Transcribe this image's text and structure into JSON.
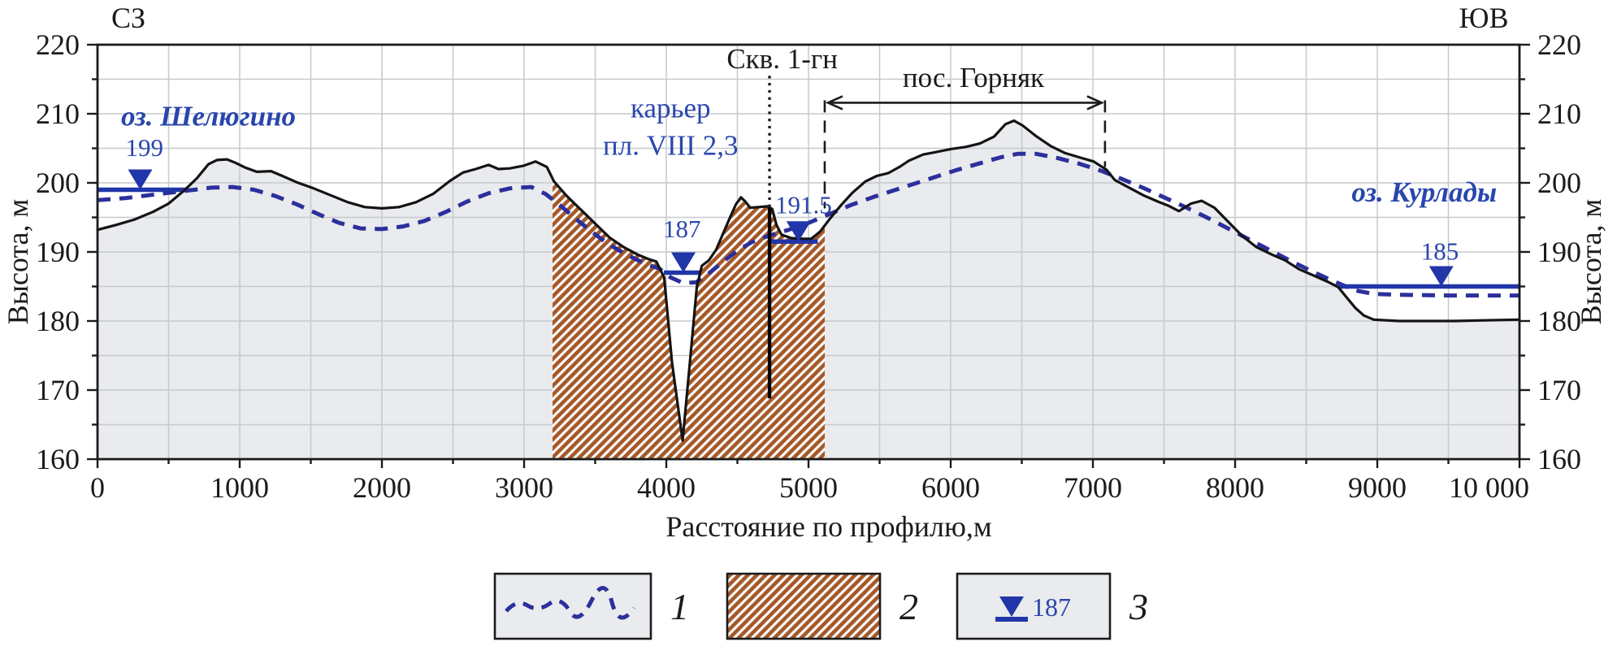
{
  "chart_data": {
    "type": "line",
    "subtype": "geological-elevation-profile",
    "xlabel": "Расстояние по профилю,м",
    "ylabel": "Высота, м",
    "xlim": [
      0,
      10000
    ],
    "ylim": [
      160,
      220
    ],
    "grid": {
      "on": true,
      "x_minor_step": 500,
      "y_minor_step": 5
    },
    "legend_position": "bottom",
    "corner_labels": {
      "left": "СЗ",
      "right": "ЮВ"
    },
    "x_ticks": [
      0,
      1000,
      2000,
      3000,
      4000,
      5000,
      6000,
      7000,
      8000,
      9000,
      10000
    ],
    "x_tick_labels": [
      "0",
      "1000",
      "2000",
      "3000",
      "4000",
      "5000",
      "6000",
      "7000",
      "8000",
      "9000",
      "10 000"
    ],
    "y_ticks": [
      160,
      170,
      180,
      190,
      200,
      210,
      220
    ],
    "y_tick_labels": [
      "160",
      "170",
      "180",
      "190",
      "200",
      "210",
      "220"
    ],
    "series": [
      {
        "name": "terrain-surface",
        "style": "solid",
        "color": "#141414",
        "fill_below": "#e9ebee",
        "points": [
          [
            0,
            193.2
          ],
          [
            130,
            193.9
          ],
          [
            260,
            194.7
          ],
          [
            390,
            195.8
          ],
          [
            500,
            197.0
          ],
          [
            610,
            198.9
          ],
          [
            700,
            200.7
          ],
          [
            780,
            202.7
          ],
          [
            840,
            203.3
          ],
          [
            910,
            203.4
          ],
          [
            970,
            202.9
          ],
          [
            1040,
            202.2
          ],
          [
            1120,
            201.6
          ],
          [
            1220,
            201.7
          ],
          [
            1300,
            201.0
          ],
          [
            1400,
            200.1
          ],
          [
            1520,
            199.2
          ],
          [
            1640,
            198.2
          ],
          [
            1760,
            197.2
          ],
          [
            1880,
            196.5
          ],
          [
            2000,
            196.3
          ],
          [
            2120,
            196.5
          ],
          [
            2240,
            197.2
          ],
          [
            2360,
            198.4
          ],
          [
            2480,
            200.3
          ],
          [
            2570,
            201.5
          ],
          [
            2660,
            202.0
          ],
          [
            2750,
            202.6
          ],
          [
            2820,
            202.0
          ],
          [
            2900,
            202.1
          ],
          [
            3000,
            202.5
          ],
          [
            3080,
            203.1
          ],
          [
            3160,
            202.3
          ],
          [
            3210,
            200.2
          ],
          [
            3300,
            198.1
          ],
          [
            3400,
            196.1
          ],
          [
            3500,
            194.1
          ],
          [
            3600,
            192.1
          ],
          [
            3700,
            190.7
          ],
          [
            3800,
            189.6
          ],
          [
            3870,
            189.0
          ],
          [
            3930,
            188.6
          ],
          [
            3985,
            186.3
          ],
          [
            4040,
            174.0
          ],
          [
            4115,
            162.7
          ],
          [
            4175,
            176.0
          ],
          [
            4215,
            185.0
          ],
          [
            4250,
            188.0
          ],
          [
            4300,
            188.8
          ],
          [
            4350,
            190.3
          ],
          [
            4400,
            192.7
          ],
          [
            4450,
            195.1
          ],
          [
            4490,
            196.9
          ],
          [
            4525,
            197.9
          ],
          [
            4555,
            197.3
          ],
          [
            4590,
            196.4
          ],
          [
            4650,
            196.5
          ],
          [
            4710,
            196.6
          ],
          [
            4745,
            196.2
          ],
          [
            4775,
            193.9
          ],
          [
            4810,
            192.5
          ],
          [
            4880,
            192.0
          ],
          [
            4960,
            191.9
          ],
          [
            5020,
            191.9
          ],
          [
            5080,
            192.9
          ],
          [
            5150,
            194.8
          ],
          [
            5230,
            196.8
          ],
          [
            5310,
            198.6
          ],
          [
            5400,
            200.2
          ],
          [
            5480,
            201.0
          ],
          [
            5560,
            201.4
          ],
          [
            5640,
            202.3
          ],
          [
            5705,
            203.2
          ],
          [
            5805,
            204.1
          ],
          [
            5905,
            204.5
          ],
          [
            6005,
            204.9
          ],
          [
            6105,
            205.2
          ],
          [
            6205,
            205.7
          ],
          [
            6305,
            206.7
          ],
          [
            6385,
            208.5
          ],
          [
            6445,
            209.0
          ],
          [
            6505,
            208.3
          ],
          [
            6605,
            206.7
          ],
          [
            6705,
            205.3
          ],
          [
            6805,
            204.3
          ],
          [
            6905,
            203.7
          ],
          [
            7005,
            203.1
          ],
          [
            7095,
            201.9
          ],
          [
            7155,
            200.4
          ],
          [
            7255,
            199.3
          ],
          [
            7355,
            198.2
          ],
          [
            7455,
            197.3
          ],
          [
            7530,
            196.7
          ],
          [
            7605,
            195.9
          ],
          [
            7690,
            197.0
          ],
          [
            7765,
            197.4
          ],
          [
            7855,
            196.4
          ],
          [
            7950,
            194.4
          ],
          [
            8050,
            192.3
          ],
          [
            8150,
            190.7
          ],
          [
            8250,
            189.7
          ],
          [
            8350,
            188.8
          ],
          [
            8450,
            187.5
          ],
          [
            8550,
            186.6
          ],
          [
            8650,
            185.7
          ],
          [
            8725,
            184.9
          ],
          [
            8785,
            183.4
          ],
          [
            8845,
            181.9
          ],
          [
            8905,
            180.8
          ],
          [
            8975,
            180.2
          ],
          [
            9150,
            180.0
          ],
          [
            9350,
            180.0
          ],
          [
            9550,
            180.0
          ],
          [
            9750,
            180.1
          ],
          [
            10000,
            180.2
          ]
        ]
      },
      {
        "name": "water-table",
        "style": "dashed",
        "color": "#2c2f9c",
        "legend_number": "1",
        "points": [
          [
            0,
            197.5
          ],
          [
            200,
            197.8
          ],
          [
            400,
            198.3
          ],
          [
            600,
            198.8
          ],
          [
            800,
            199.3
          ],
          [
            950,
            199.4
          ],
          [
            1100,
            199.0
          ],
          [
            1250,
            198.1
          ],
          [
            1400,
            196.9
          ],
          [
            1550,
            195.5
          ],
          [
            1700,
            194.2
          ],
          [
            1850,
            193.4
          ],
          [
            2000,
            193.3
          ],
          [
            2150,
            193.7
          ],
          [
            2300,
            194.5
          ],
          [
            2450,
            195.8
          ],
          [
            2600,
            197.3
          ],
          [
            2750,
            198.5
          ],
          [
            2900,
            199.2
          ],
          [
            3050,
            199.4
          ],
          [
            3150,
            198.4
          ],
          [
            3250,
            196.8
          ],
          [
            3350,
            195.0
          ],
          [
            3460,
            193.2
          ],
          [
            3560,
            191.6
          ],
          [
            3660,
            190.3
          ],
          [
            3760,
            189.2
          ],
          [
            3860,
            188.2
          ],
          [
            3950,
            187.6
          ],
          [
            4030,
            186.3
          ],
          [
            4120,
            185.5
          ],
          [
            4210,
            185.6
          ],
          [
            4300,
            186.9
          ],
          [
            4400,
            188.6
          ],
          [
            4500,
            190.2
          ],
          [
            4600,
            191.4
          ],
          [
            4715,
            192.3
          ],
          [
            4860,
            193.2
          ],
          [
            5000,
            194.2
          ],
          [
            5150,
            195.5
          ],
          [
            5300,
            196.8
          ],
          [
            5450,
            197.9
          ],
          [
            5600,
            198.9
          ],
          [
            5750,
            199.9
          ],
          [
            5900,
            200.9
          ],
          [
            6050,
            201.9
          ],
          [
            6200,
            202.8
          ],
          [
            6350,
            203.7
          ],
          [
            6470,
            204.2
          ],
          [
            6600,
            204.2
          ],
          [
            6750,
            203.6
          ],
          [
            6900,
            202.8
          ],
          [
            7050,
            201.8
          ],
          [
            7200,
            200.6
          ],
          [
            7350,
            199.3
          ],
          [
            7500,
            197.9
          ],
          [
            7650,
            196.5
          ],
          [
            7800,
            195.0
          ],
          [
            7950,
            193.4
          ],
          [
            8100,
            191.8
          ],
          [
            8250,
            190.2
          ],
          [
            8400,
            188.6
          ],
          [
            8550,
            187.1
          ],
          [
            8700,
            185.7
          ],
          [
            8850,
            184.4
          ],
          [
            8980,
            183.9
          ],
          [
            9150,
            183.8
          ],
          [
            9500,
            183.7
          ],
          [
            10000,
            183.7
          ]
        ]
      }
    ],
    "quarry_hatch": {
      "legend_number": "2",
      "x_from": 3200,
      "x_to": 5114,
      "stripe_color": "#a5592a",
      "bg_color": "#fffefa"
    },
    "water_levels": [
      {
        "lake": "оз. Шелюгино",
        "value": "199",
        "elev": 199,
        "line_x": [
          0,
          620
        ],
        "marker_x": 300,
        "label_x": 330,
        "label_elev": 205.2
      },
      {
        "lake": "",
        "value": "187",
        "elev": 187,
        "line_x": [
          3983,
          4234
        ],
        "marker_x": 4120,
        "label_x": 4110,
        "label_elev": 193.4
      },
      {
        "lake": "",
        "value": "191.5",
        "elev": 191.5,
        "line_x": [
          4720,
          5065
        ],
        "marker_x": 4930,
        "label_x": 4965,
        "label_elev": 196.9
      },
      {
        "lake": "оз. Курлады",
        "value": "185",
        "elev": 185,
        "line_x": [
          8728,
          10000
        ],
        "marker_x": 9450,
        "label_x": 9440,
        "label_elev": 190.2
      }
    ],
    "annotations": [
      {
        "id": "lake-shelyugino-label",
        "text": "оз. Шелюгино",
        "x": 780,
        "elev": 209.7,
        "color": "blue",
        "italic": true,
        "size": 35
      },
      {
        "id": "lake-kurlady-label",
        "text": "оз. Курлады",
        "x": 9330,
        "elev": 198.7,
        "color": "blue",
        "italic": true,
        "size": 35
      },
      {
        "id": "quarry-label-line1",
        "text": "карьер",
        "x": 4030,
        "elev": 210.9,
        "color": "blue",
        "italic": false,
        "size": 35
      },
      {
        "id": "quarry-label-line2",
        "text": "пл. VIII 2,3",
        "x": 4030,
        "elev": 205.5,
        "color": "blue",
        "italic": false,
        "size": 35
      },
      {
        "id": "borehole-label",
        "text": "Скв. 1-гн",
        "x": 4815,
        "elev": 218.0,
        "color": "black",
        "italic": false,
        "size": 35
      },
      {
        "id": "settlement-label",
        "text": "пос. Горняк",
        "x": 6160,
        "elev": 215.3,
        "color": "black",
        "italic": false,
        "size": 35
      }
    ],
    "borehole": {
      "label": "Скв. 1-гн",
      "x": 4726,
      "dotted_elev": [
        215.5,
        196.4
      ],
      "solid_elev": [
        196.4,
        168.8
      ]
    },
    "settlement_span": {
      "label": "пос. Горняк",
      "x_from": 5114,
      "x_to": 7085,
      "arrow_elev": 211.6,
      "drop_left_to_elev": 196.3,
      "drop_right_to_elev": 202.3
    },
    "legend": {
      "items": [
        {
          "number": "1",
          "type": "dashed-water-table"
        },
        {
          "number": "2",
          "type": "quarry-hatch"
        },
        {
          "number": "3",
          "type": "water-level-marker",
          "value": "187"
        }
      ]
    },
    "colors": {
      "blue_text": "#2a46ad",
      "water_blue": "#2136a8",
      "dashed_blue": "#2c2f9c",
      "terrain": "#141414",
      "ground_fill": "#e9ebee",
      "grid": "#c6c9cd",
      "hatch_stripe": "#a5592a",
      "hatch_bg": "#fffefa",
      "axis_black": "#1b1b1b"
    }
  }
}
